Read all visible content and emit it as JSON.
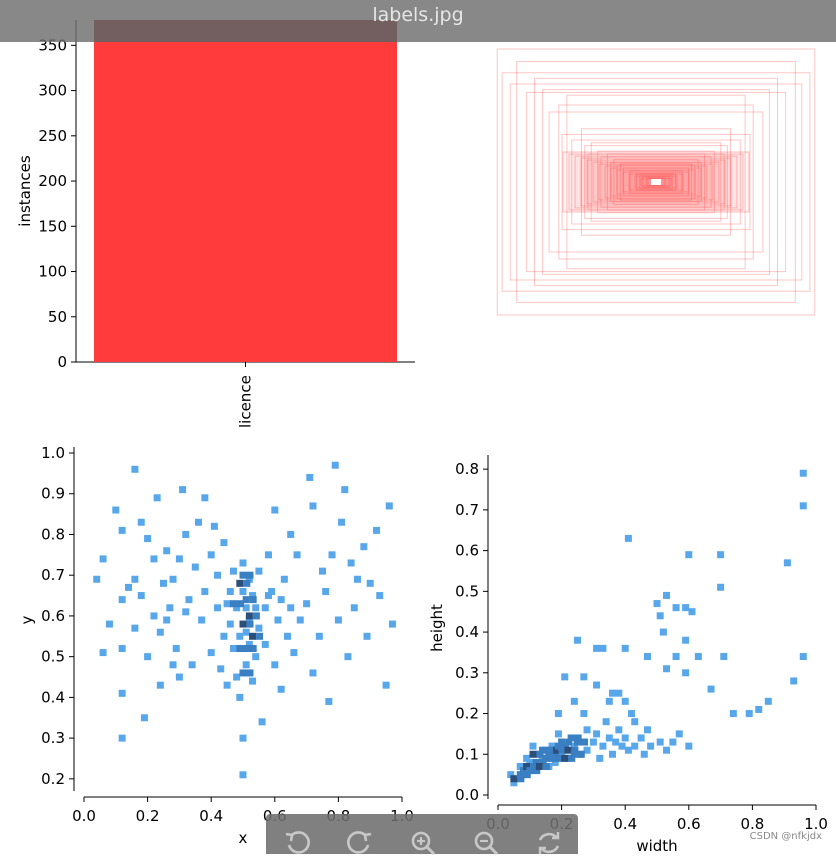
{
  "window": {
    "title": "labels.jpg"
  },
  "watermark": "CSDN @nfkjdx",
  "toolbar": {
    "buttons": [
      {
        "name": "rotate-left-button",
        "icon": "rotate-left-icon"
      },
      {
        "name": "rotate-right-button",
        "icon": "rotate-right-icon"
      },
      {
        "name": "zoom-in-button",
        "icon": "zoom-in-icon"
      },
      {
        "name": "zoom-out-button",
        "icon": "zoom-out-icon"
      },
      {
        "name": "refresh-button",
        "icon": "refresh-icon"
      }
    ]
  },
  "colors": {
    "bar": "#ff3b3b",
    "bar_top": "#8b1f1f",
    "hist_light": "#57a7ea",
    "hist_mid": "#3a7fc2",
    "hist_dark": "#2c4f7a",
    "box": "#ff4040"
  },
  "chart_data": [
    {
      "type": "bar",
      "categories": [
        "licence"
      ],
      "values": [
        378
      ],
      "ylabel": "instances",
      "ylim": [
        0,
        378
      ],
      "yticks": [
        "0",
        "50",
        "100",
        "150",
        "200",
        "250",
        "300",
        "350"
      ]
    },
    {
      "type": "box-overlay",
      "description_values": "bounding boxes centered at (0.5, 0.5)",
      "boxes": [
        [
          0.98,
          0.95
        ],
        [
          0.86,
          0.86
        ],
        [
          0.75,
          0.74
        ],
        [
          0.7,
          0.66
        ],
        [
          0.95,
          0.78
        ],
        [
          0.6,
          0.55
        ],
        [
          0.55,
          0.62
        ],
        [
          0.46,
          0.38
        ],
        [
          0.4,
          0.28
        ],
        [
          0.36,
          0.22
        ],
        [
          0.3,
          0.2
        ],
        [
          0.26,
          0.16
        ],
        [
          0.22,
          0.13
        ],
        [
          0.2,
          0.1
        ],
        [
          0.16,
          0.08
        ],
        [
          0.12,
          0.06
        ],
        [
          0.1,
          0.05
        ],
        [
          0.08,
          0.04
        ],
        [
          0.06,
          0.03
        ],
        [
          0.05,
          0.025
        ],
        [
          0.52,
          0.3
        ],
        [
          0.58,
          0.34
        ],
        [
          0.44,
          0.26
        ],
        [
          0.34,
          0.18
        ],
        [
          0.28,
          0.14
        ],
        [
          0.66,
          0.5
        ],
        [
          0.8,
          0.64
        ],
        [
          0.9,
          0.7
        ],
        [
          0.42,
          0.2
        ],
        [
          0.24,
          0.12
        ]
      ]
    },
    {
      "type": "heatmap",
      "xlabel": "x",
      "ylabel": "y",
      "xlim": [
        0,
        1
      ],
      "ylim": [
        0.18,
        1.0
      ],
      "xticks": [
        "0.0",
        "0.2",
        "0.4",
        "0.6",
        "0.8",
        "1.0"
      ],
      "yticks": [
        "0.2",
        "0.3",
        "0.4",
        "0.5",
        "0.6",
        "0.7",
        "0.8",
        "0.9",
        "1.0"
      ],
      "points": [
        [
          0.04,
          0.69
        ],
        [
          0.06,
          0.51
        ],
        [
          0.06,
          0.74
        ],
        [
          0.08,
          0.58
        ],
        [
          0.1,
          0.86
        ],
        [
          0.12,
          0.3
        ],
        [
          0.12,
          0.41
        ],
        [
          0.12,
          0.52
        ],
        [
          0.12,
          0.64
        ],
        [
          0.12,
          0.81
        ],
        [
          0.14,
          0.67
        ],
        [
          0.16,
          0.96
        ],
        [
          0.16,
          0.69
        ],
        [
          0.16,
          0.57
        ],
        [
          0.18,
          0.83
        ],
        [
          0.18,
          0.65
        ],
        [
          0.19,
          0.35
        ],
        [
          0.2,
          0.5
        ],
        [
          0.2,
          0.79
        ],
        [
          0.22,
          0.74
        ],
        [
          0.22,
          0.6
        ],
        [
          0.23,
          0.89
        ],
        [
          0.24,
          0.56
        ],
        [
          0.24,
          0.43
        ],
        [
          0.25,
          0.68
        ],
        [
          0.26,
          0.76
        ],
        [
          0.27,
          0.62
        ],
        [
          0.28,
          0.48
        ],
        [
          0.28,
          0.69
        ],
        [
          0.29,
          0.52
        ],
        [
          0.3,
          0.45
        ],
        [
          0.3,
          0.74
        ],
        [
          0.31,
          0.91
        ],
        [
          0.32,
          0.61
        ],
        [
          0.32,
          0.8
        ],
        [
          0.33,
          0.64
        ],
        [
          0.34,
          0.48
        ],
        [
          0.35,
          0.72
        ],
        [
          0.36,
          0.83
        ],
        [
          0.37,
          0.59
        ],
        [
          0.38,
          0.89
        ],
        [
          0.38,
          0.66
        ],
        [
          0.4,
          0.75
        ],
        [
          0.4,
          0.51
        ],
        [
          0.41,
          0.82
        ],
        [
          0.42,
          0.62
        ],
        [
          0.42,
          0.7
        ],
        [
          0.43,
          0.47
        ],
        [
          0.44,
          0.55
        ],
        [
          0.44,
          0.78
        ],
        [
          0.45,
          0.63
        ],
        [
          0.45,
          0.43
        ],
        [
          0.46,
          0.66
        ],
        [
          0.46,
          0.58
        ],
        [
          0.47,
          0.52
        ],
        [
          0.47,
          0.71
        ],
        [
          0.48,
          0.62
        ],
        [
          0.48,
          0.45
        ],
        [
          0.49,
          0.55
        ],
        [
          0.49,
          0.4
        ],
        [
          0.5,
          0.21
        ],
        [
          0.5,
          0.3
        ],
        [
          0.5,
          0.66
        ],
        [
          0.5,
          0.73
        ],
        [
          0.51,
          0.62
        ],
        [
          0.51,
          0.56
        ],
        [
          0.51,
          0.48
        ],
        [
          0.52,
          0.69
        ],
        [
          0.52,
          0.53
        ],
        [
          0.52,
          0.59
        ],
        [
          0.53,
          0.65
        ],
        [
          0.53,
          0.44
        ],
        [
          0.54,
          0.5
        ],
        [
          0.54,
          0.62
        ],
        [
          0.55,
          0.71
        ],
        [
          0.55,
          0.57
        ],
        [
          0.56,
          0.34
        ],
        [
          0.57,
          0.53
        ],
        [
          0.57,
          0.62
        ],
        [
          0.58,
          0.75
        ],
        [
          0.59,
          0.66
        ],
        [
          0.6,
          0.86
        ],
        [
          0.6,
          0.48
        ],
        [
          0.61,
          0.59
        ],
        [
          0.62,
          0.42
        ],
        [
          0.63,
          0.69
        ],
        [
          0.64,
          0.55
        ],
        [
          0.65,
          0.8
        ],
        [
          0.65,
          0.62
        ],
        [
          0.66,
          0.51
        ],
        [
          0.67,
          0.75
        ],
        [
          0.68,
          0.59
        ],
        [
          0.7,
          0.63
        ],
        [
          0.71,
          0.94
        ],
        [
          0.72,
          0.46
        ],
        [
          0.72,
          0.87
        ],
        [
          0.74,
          0.55
        ],
        [
          0.75,
          0.71
        ],
        [
          0.76,
          0.66
        ],
        [
          0.77,
          0.39
        ],
        [
          0.78,
          0.75
        ],
        [
          0.79,
          0.97
        ],
        [
          0.8,
          0.59
        ],
        [
          0.81,
          0.83
        ],
        [
          0.82,
          0.91
        ],
        [
          0.83,
          0.5
        ],
        [
          0.84,
          0.73
        ],
        [
          0.85,
          0.62
        ],
        [
          0.86,
          0.69
        ],
        [
          0.88,
          0.77
        ],
        [
          0.89,
          0.55
        ],
        [
          0.9,
          0.68
        ],
        [
          0.92,
          0.81
        ],
        [
          0.93,
          0.65
        ],
        [
          0.95,
          0.43
        ],
        [
          0.96,
          0.87
        ],
        [
          0.97,
          0.58
        ],
        [
          0.58,
          0.65
        ],
        [
          0.62,
          0.64
        ],
        [
          0.26,
          0.59
        ]
      ],
      "dense": [
        [
          0.49,
          0.68
        ],
        [
          0.5,
          0.7
        ],
        [
          0.47,
          0.63
        ],
        [
          0.5,
          0.58
        ],
        [
          0.51,
          0.52
        ],
        [
          0.49,
          0.52
        ],
        [
          0.52,
          0.6
        ],
        [
          0.51,
          0.64
        ],
        [
          0.5,
          0.46
        ],
        [
          0.53,
          0.55
        ]
      ]
    },
    {
      "type": "heatmap",
      "xlabel": "width",
      "ylabel": "height",
      "xlim": [
        0,
        1
      ],
      "ylim": [
        0,
        0.82
      ],
      "xticks": [
        "0.0",
        "0.2",
        "0.4",
        "0.6",
        "0.8",
        "1.0"
      ],
      "yticks": [
        "0.0",
        "0.1",
        "0.2",
        "0.3",
        "0.4",
        "0.5",
        "0.6",
        "0.7",
        "0.8"
      ],
      "points": [
        [
          0.96,
          0.79
        ],
        [
          0.96,
          0.71
        ],
        [
          0.41,
          0.63
        ],
        [
          0.6,
          0.59
        ],
        [
          0.7,
          0.59
        ],
        [
          0.91,
          0.57
        ],
        [
          0.7,
          0.51
        ],
        [
          0.53,
          0.49
        ],
        [
          0.5,
          0.47
        ],
        [
          0.56,
          0.46
        ],
        [
          0.59,
          0.46
        ],
        [
          0.61,
          0.45
        ],
        [
          0.51,
          0.44
        ],
        [
          0.52,
          0.4
        ],
        [
          0.59,
          0.38
        ],
        [
          0.25,
          0.38
        ],
        [
          0.4,
          0.36
        ],
        [
          0.31,
          0.36
        ],
        [
          0.33,
          0.36
        ],
        [
          0.47,
          0.34
        ],
        [
          0.56,
          0.34
        ],
        [
          0.63,
          0.34
        ],
        [
          0.71,
          0.34
        ],
        [
          0.96,
          0.34
        ],
        [
          0.53,
          0.31
        ],
        [
          0.59,
          0.3
        ],
        [
          0.21,
          0.29
        ],
        [
          0.27,
          0.29
        ],
        [
          0.93,
          0.28
        ],
        [
          0.31,
          0.27
        ],
        [
          0.67,
          0.26
        ],
        [
          0.36,
          0.25
        ],
        [
          0.38,
          0.25
        ],
        [
          0.24,
          0.23
        ],
        [
          0.35,
          0.23
        ],
        [
          0.4,
          0.23
        ],
        [
          0.85,
          0.23
        ],
        [
          0.82,
          0.21
        ],
        [
          0.19,
          0.2
        ],
        [
          0.27,
          0.2
        ],
        [
          0.42,
          0.2
        ],
        [
          0.74,
          0.2
        ],
        [
          0.79,
          0.2
        ],
        [
          0.43,
          0.18
        ],
        [
          0.47,
          0.16
        ],
        [
          0.57,
          0.15
        ],
        [
          0.55,
          0.13
        ],
        [
          0.51,
          0.13
        ],
        [
          0.6,
          0.12
        ],
        [
          0.53,
          0.11
        ],
        [
          0.45,
          0.14
        ],
        [
          0.4,
          0.14
        ],
        [
          0.38,
          0.16
        ],
        [
          0.35,
          0.14
        ],
        [
          0.33,
          0.12
        ],
        [
          0.3,
          0.13
        ],
        [
          0.28,
          0.11
        ],
        [
          0.26,
          0.1
        ],
        [
          0.24,
          0.12
        ],
        [
          0.22,
          0.09
        ],
        [
          0.2,
          0.1
        ],
        [
          0.18,
          0.08
        ],
        [
          0.16,
          0.07
        ],
        [
          0.14,
          0.09
        ],
        [
          0.12,
          0.06
        ],
        [
          0.1,
          0.08
        ],
        [
          0.08,
          0.05
        ],
        [
          0.06,
          0.04
        ],
        [
          0.05,
          0.03
        ],
        [
          0.04,
          0.05
        ],
        [
          0.28,
          0.16
        ],
        [
          0.31,
          0.15
        ],
        [
          0.34,
          0.18
        ],
        [
          0.37,
          0.13
        ],
        [
          0.43,
          0.12
        ],
        [
          0.48,
          0.12
        ],
        [
          0.25,
          0.14
        ],
        [
          0.21,
          0.12
        ],
        [
          0.19,
          0.15
        ],
        [
          0.17,
          0.12
        ],
        [
          0.15,
          0.11
        ],
        [
          0.13,
          0.1
        ],
        [
          0.11,
          0.12
        ],
        [
          0.09,
          0.09
        ],
        [
          0.07,
          0.07
        ],
        [
          0.36,
          0.1
        ],
        [
          0.41,
          0.11
        ],
        [
          0.46,
          0.1
        ],
        [
          0.39,
          0.12
        ],
        [
          0.32,
          0.09
        ]
      ],
      "dense": [
        [
          0.05,
          0.04
        ],
        [
          0.07,
          0.05
        ],
        [
          0.08,
          0.06
        ],
        [
          0.09,
          0.07
        ],
        [
          0.1,
          0.06
        ],
        [
          0.12,
          0.08
        ],
        [
          0.13,
          0.07
        ],
        [
          0.15,
          0.09
        ],
        [
          0.16,
          0.1
        ],
        [
          0.18,
          0.11
        ],
        [
          0.19,
          0.12
        ],
        [
          0.2,
          0.13
        ],
        [
          0.22,
          0.11
        ],
        [
          0.23,
          0.14
        ],
        [
          0.25,
          0.13
        ],
        [
          0.11,
          0.1
        ],
        [
          0.14,
          0.11
        ],
        [
          0.17,
          0.09
        ],
        [
          0.21,
          0.09
        ],
        [
          0.24,
          0.1
        ]
      ]
    }
  ]
}
